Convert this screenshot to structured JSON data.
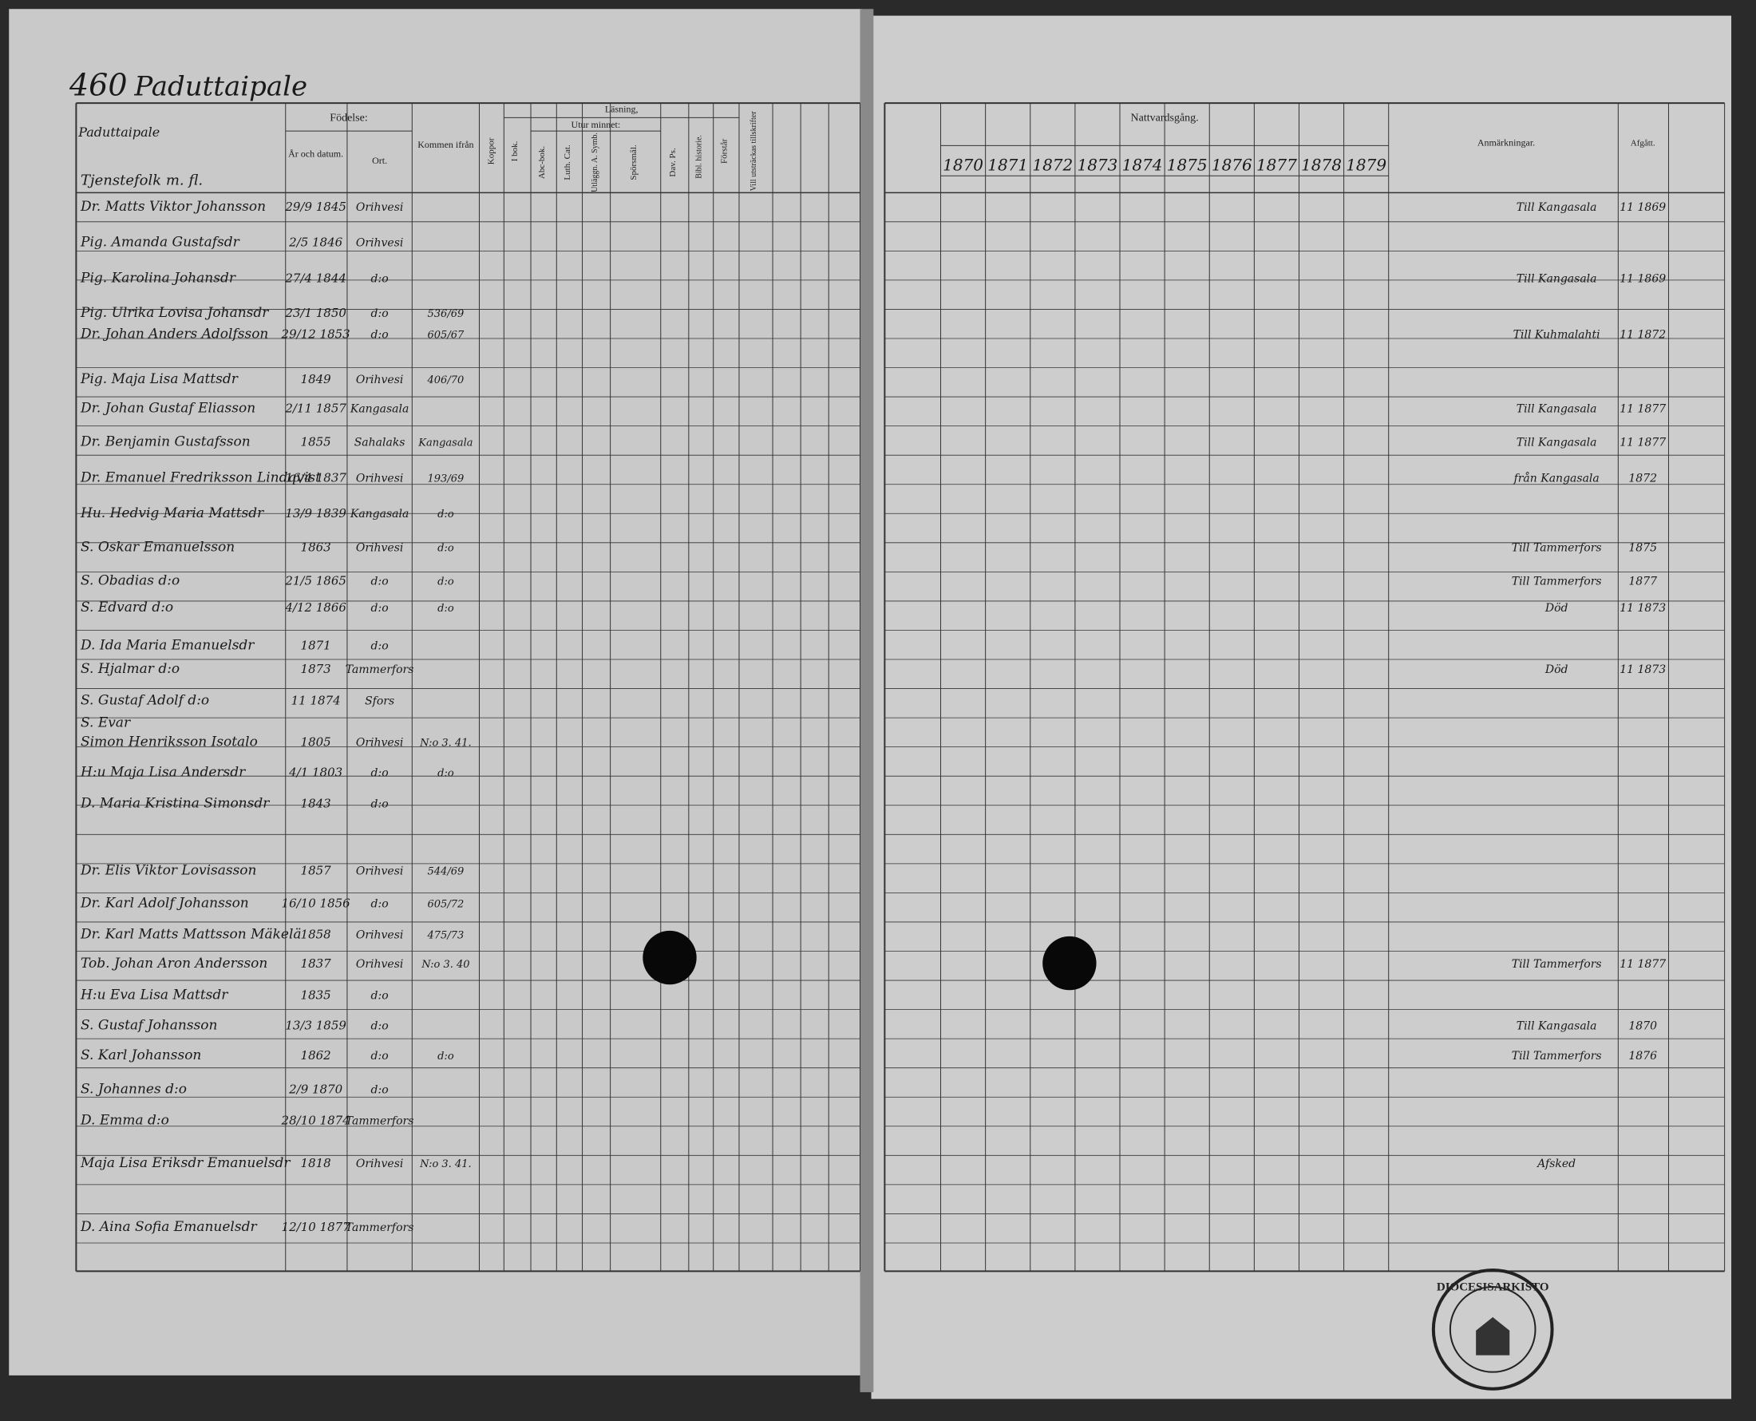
{
  "header": {
    "page_number": "460",
    "village": "Paduttaipale",
    "column_title": "Paduttaipale",
    "subtitle": "Tjenstefolk m. fl."
  },
  "left_columns": {
    "birth": "Födelse:",
    "birth_date": "År och datum.",
    "birth_place": "Ort.",
    "came_from": "Kommen ifrån",
    "smallpox": "Koppor",
    "reading": "Läsning,",
    "from_book": "I bok.",
    "memory": "Utur minnet:",
    "abc": "Abc-bok.",
    "catechism": "Luth. Cat.",
    "explanation": "Utläggn. A. Symb.",
    "questions": "Spörsmål.",
    "psalms": "Dav. Ps.",
    "bible_history": "Bibl. historie.",
    "understands": "Förstår",
    "written": "Vill utsträckas tillskrifter"
  },
  "right_columns": {
    "communion": "Nattvardsgång.",
    "remarks": "Anmärkningar.",
    "departed": "Afgått."
  },
  "years": [
    "1870",
    "1871",
    "1872",
    "1873",
    "1874",
    "1875",
    "1876",
    "1877",
    "1878",
    "1879"
  ],
  "rows": [
    {
      "name": "Dr. Matts Viktor Johansson",
      "date": "29/9 1845",
      "place": "Orihvesi",
      "remark": "Till Kangasala",
      "departed": "11 1869"
    },
    {
      "name": "Pig. Amanda Gustafsdr",
      "date": "2/5 1846",
      "place": "Orihvesi"
    },
    {
      "name": "Pig. Karolina Johansdr",
      "date": "27/4 1844",
      "place": "d:o",
      "remark": "Till Kangasala",
      "departed": "11 1869"
    },
    {
      "name": "Pig. Ulrika Lovisa Johansdr",
      "date": "23/1 1850",
      "place": "d:o",
      "came": "536/69"
    },
    {
      "name": "Dr. Johan Anders Adolfsson",
      "date": "29/12 1853",
      "place": "d:o",
      "came": "605/67",
      "remark": "Till Kuhmalahti",
      "departed": "11 1872"
    },
    {
      "name": "Pig. Maja Lisa Mattsdr",
      "date": "1849",
      "place": "Orihvesi",
      "came": "406/70"
    },
    {
      "name": "Dr. Johan Gustaf Eliasson",
      "date": "2/11 1857",
      "place": "Kangasala",
      "remark": "Till Kangasala",
      "departed": "11 1877"
    },
    {
      "name": "Dr. Benjamin Gustafsson",
      "date": "1855",
      "place": "Sahalaks",
      "came": "Kangasala",
      "remark": "Till Kangasala",
      "departed": "11 1877"
    },
    {
      "name": "Dr. Emanuel Fredriksson Lindqvist",
      "date": "16/4 1837",
      "place": "Orihvesi",
      "came": "193/69",
      "remark": "från Kangasala",
      "departed": "1872"
    },
    {
      "name": "Hu. Hedvig Maria Mattsdr",
      "date": "13/9 1839",
      "place": "Kangasala",
      "came": "d:o"
    },
    {
      "name": "S. Oskar Emanuelsson",
      "date": "1863",
      "place": "Orihvesi",
      "came": "d:o",
      "remark": "Till Tammerfors",
      "departed": "1875"
    },
    {
      "name": "S. Obadias d:o",
      "date": "21/5 1865",
      "place": "d:o",
      "came": "d:o",
      "remark": "Till Tammerfors",
      "departed": "1877"
    },
    {
      "name": "S. Edvard d:o",
      "date": "4/12 1866",
      "place": "d:o",
      "came": "d:o",
      "remark": "Död",
      "departed": "11 1873"
    },
    {
      "name": "D. Ida Maria Emanuelsdr",
      "date": "1871",
      "place": "d:o"
    },
    {
      "name": "S. Hjalmar d:o",
      "date": "1873",
      "place": "Tammerfors",
      "remark": "Död",
      "departed": "11 1873"
    },
    {
      "name": "S. Gustaf Adolf d:o",
      "date": "11 1874",
      "place": "Sfors"
    },
    {
      "name": "S. Evar"
    },
    {
      "name": "Simon Henriksson Isotalo",
      "date": "1805",
      "place": "Orihvesi",
      "came": "N:o 3. 41."
    },
    {
      "name": "H:u Maja Lisa Andersdr",
      "date": "4/1 1803",
      "place": "d:o",
      "came": "d:o"
    },
    {
      "name": "D. Maria Kristina Simonsdr",
      "date": "1843",
      "place": "d:o"
    },
    {
      "name": "Dr. Elis Viktor Lovisasson",
      "date": "1857",
      "place": "Orihvesi",
      "came": "544/69"
    },
    {
      "name": "Dr. Karl Adolf Johansson",
      "date": "16/10 1856",
      "place": "d:o",
      "came": "605/72"
    },
    {
      "name": "Dr. Karl Matts Mattsson Mäkelä",
      "date": "1858",
      "place": "Orihvesi",
      "came": "475/73"
    },
    {
      "name": "Tob. Johan Aron Andersson",
      "date": "1837",
      "place": "Orihvesi",
      "came": "N:o 3. 40",
      "remark": "Till Tammerfors",
      "departed": "11 1877"
    },
    {
      "name": "H:u Eva Lisa Mattsdr",
      "date": "1835",
      "place": "d:o"
    },
    {
      "name": "S. Gustaf Johansson",
      "date": "13/3 1859",
      "place": "d:o",
      "remark": "Till Kangasala",
      "departed": "1870"
    },
    {
      "name": "S. Karl Johansson",
      "date": "1862",
      "place": "d:o",
      "came": "d:o",
      "remark": "Till Tammerfors",
      "departed": "1876"
    },
    {
      "name": "S. Johannes d:o",
      "date": "2/9 1870",
      "place": "d:o"
    },
    {
      "name": "D. Emma d:o",
      "date": "28/10 1874",
      "place": "Tammerfors"
    },
    {
      "name": "Maja Lisa Eriksdr Emanuelsdr",
      "date": "1818",
      "place": "Orihvesi",
      "came": "N:o 3. 41.",
      "remark": "Afsked"
    },
    {
      "name": "D. Aina Sofia Emanuelsdr",
      "date": "12/10 1877",
      "place": "Tammerfors"
    }
  ],
  "stamp": "DIOCESISARKISTO"
}
